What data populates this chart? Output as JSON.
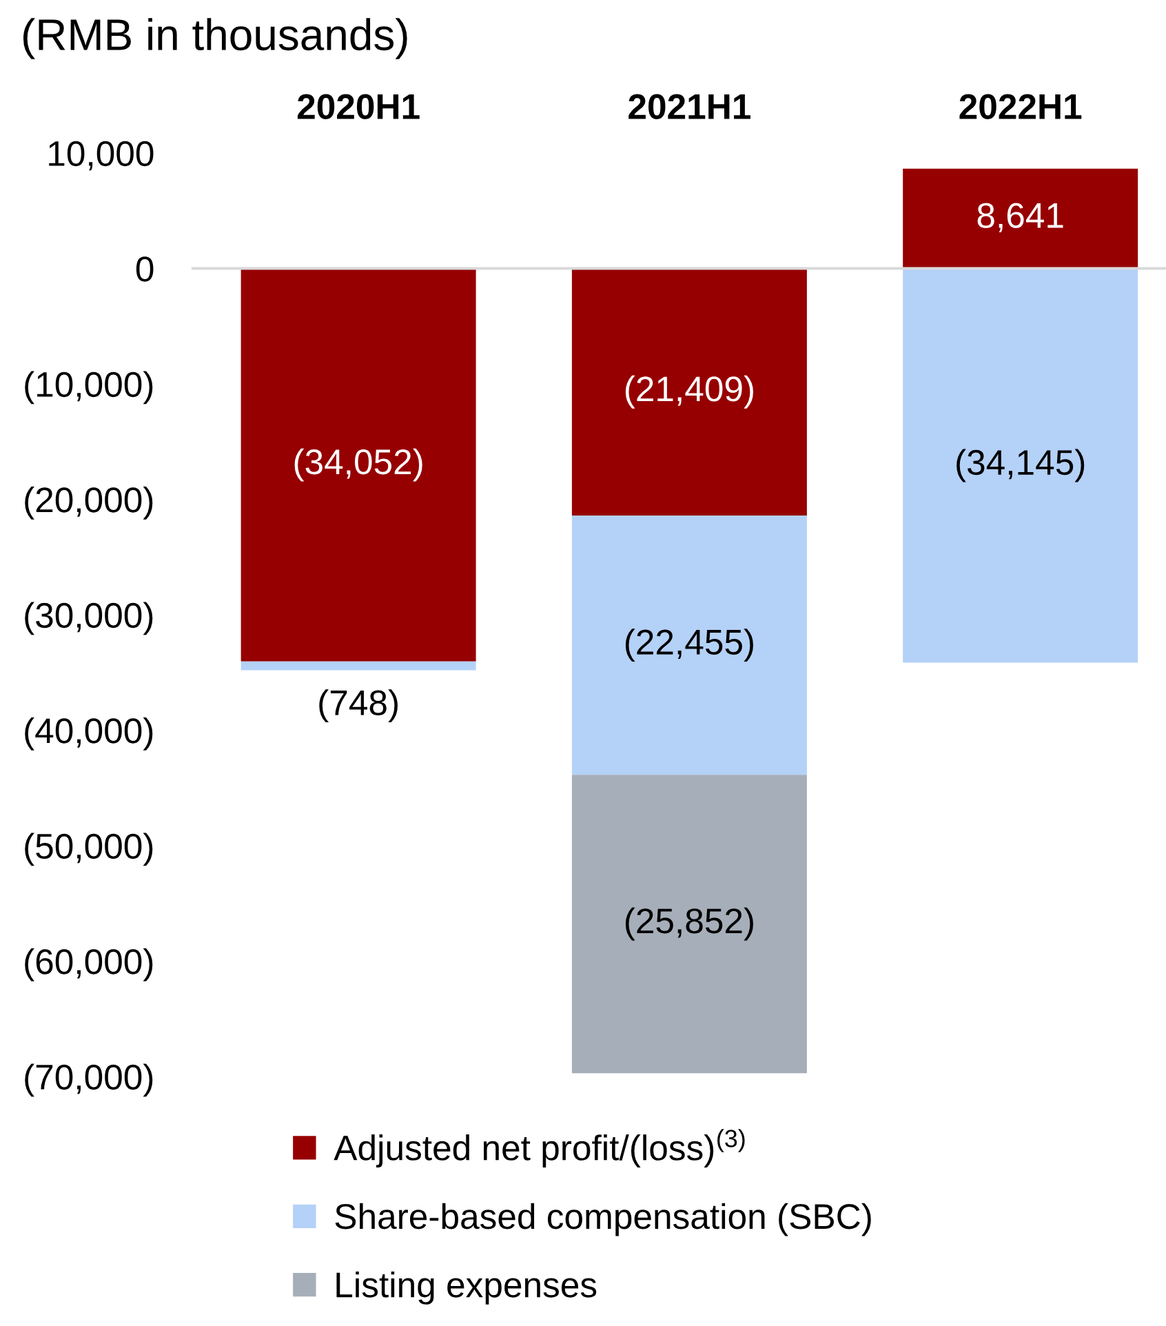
{
  "chart_data": {
    "type": "bar",
    "title": "(RMB in thousands)",
    "categories": [
      "2020H1",
      "2021H1",
      "2022H1"
    ],
    "stacked": true,
    "series": [
      {
        "name": "Adjusted net profit/(loss)$^{(3)}$",
        "color": "#960000",
        "values": [
          -34052,
          -21409,
          8641
        ],
        "value_labels": [
          "(34,052)",
          "(21,409)",
          "8,641"
        ]
      },
      {
        "name": "Share-based compensation (SBC)",
        "color": "#b4d1f8",
        "values": [
          -748,
          -22455,
          -34145
        ],
        "value_labels": [
          "(748)",
          "(22,455)",
          "(34,145)"
        ]
      },
      {
        "name": "Listing expenses",
        "color": "#a6aeb9",
        "values": [
          null,
          -25852,
          null
        ],
        "value_labels": [
          null,
          "(25,852)",
          null
        ]
      }
    ],
    "ylim": [
      -70000,
      10000
    ],
    "yticks": [
      {
        "value": 10000,
        "label": "10,000"
      },
      0,
      {
        "value": -10000,
        "label": "(10,000)"
      },
      {
        "value": -20000,
        "label": "(20,000)"
      },
      {
        "value": -30000,
        "label": "(30,000)"
      },
      {
        "value": -40000,
        "label": "(40,000)"
      },
      {
        "value": -50000,
        "label": "(50,000)"
      },
      {
        "value": -60000,
        "label": "(60,000)"
      },
      {
        "value": -70000,
        "label": "(70,000)"
      }
    ],
    "legend": "bottom"
  }
}
